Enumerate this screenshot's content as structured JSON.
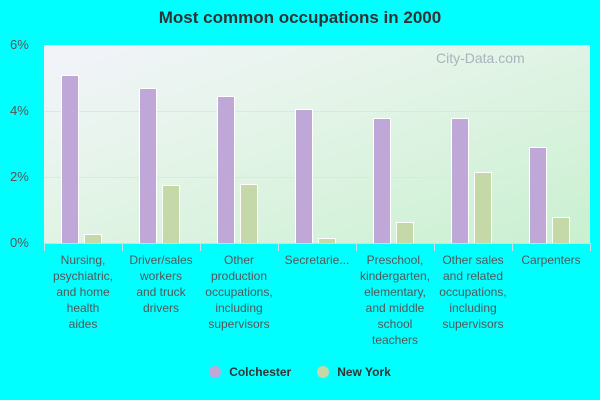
{
  "chart_data": {
    "type": "bar",
    "title": "Most common occupations in 2000",
    "xlabel": "",
    "ylabel": "",
    "ylim": [
      0,
      6
    ],
    "yticks": [
      "0%",
      "2%",
      "4%",
      "6%"
    ],
    "grid": true,
    "legend_position": "bottom",
    "categories": [
      "Nursing, psychiatric, and home health aides",
      "Driver/sales workers and truck drivers",
      "Other production occupations, including supervisors",
      "Secretarie...",
      "Preschool, kindergarten, elementary, and middle school teachers",
      "Other sales and related occupations, including supervisors",
      "Carpenters"
    ],
    "series": [
      {
        "name": "Colchester",
        "color": "#bfa8d8",
        "values": [
          5.1,
          4.7,
          4.45,
          4.05,
          3.8,
          3.8,
          2.9
        ]
      },
      {
        "name": "New York",
        "color": "#c4d8a8",
        "values": [
          0.27,
          1.75,
          1.8,
          0.15,
          0.65,
          2.15,
          0.8
        ]
      }
    ]
  },
  "labels": [
    "Nursing,\npsychiatric,\nand home\nhealth\naides",
    "Driver/sales\nworkers\nand truck\ndrivers",
    "Other\nproduction\noccupations,\nincluding\nsupervisors",
    "Secretarie...",
    "Preschool,\nkindergarten,\nelementary,\nand middle\nschool\nteachers",
    "Other sales\nand related\noccupations,\nincluding\nsupervisors",
    "Carpenters"
  ],
  "watermark": "City-Data.com"
}
